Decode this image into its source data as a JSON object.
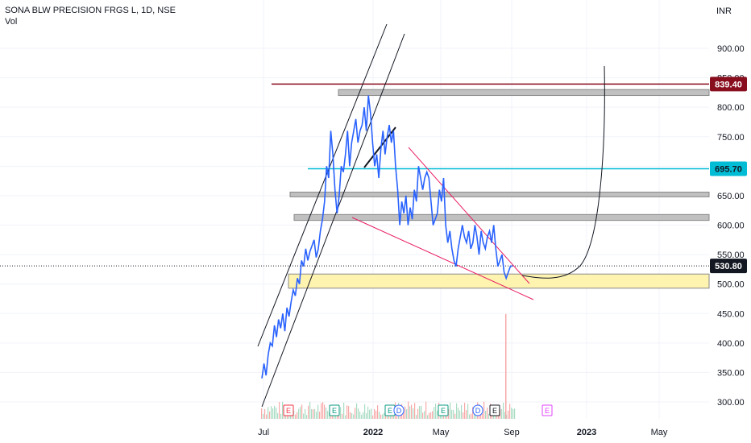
{
  "header": {
    "symbol_line": "SONA BLW PRECISION FRGS L, 1D, NSE",
    "volume_label": "Vol",
    "currency": "INR"
  },
  "chart_data": {
    "type": "line",
    "title": "SONA BLW PRECISION FRGS L, 1D, NSE",
    "ylim": [
      285,
      960
    ],
    "y_ticks": [
      "300.00",
      "350.00",
      "400.00",
      "450.00",
      "500.00",
      "550.00",
      "600.00",
      "650.00",
      "700.00",
      "750.00",
      "800.00",
      "850.00",
      "900.00"
    ],
    "x_ticks": [
      {
        "label": "Jul",
        "bold": false
      },
      {
        "label": "2022",
        "bold": true
      },
      {
        "label": "May",
        "bold": false
      },
      {
        "label": "Sep",
        "bold": false
      },
      {
        "label": "2023",
        "bold": true
      },
      {
        "label": "May",
        "bold": false
      }
    ],
    "last_price": "530.80",
    "series": [
      {
        "values": [
          340,
          365,
          345,
          380,
          400,
          395,
          430,
          410,
          440,
          425,
          450,
          420,
          460,
          445,
          470,
          490,
          480,
          510,
          500,
          540,
          530,
          560,
          540,
          555,
          565,
          575,
          545,
          560,
          590,
          610,
          640,
          700,
          680,
          760,
          720,
          660,
          620,
          650,
          700,
          690,
          720,
          760,
          700,
          740,
          760,
          780,
          740,
          760,
          770,
          800,
          760,
          820,
          790,
          740,
          700,
          720,
          680,
          730,
          760,
          720,
          750,
          770,
          740,
          760,
          700,
          660,
          600,
          640,
          620,
          650,
          600,
          630,
          610,
          660,
          640,
          700,
          680,
          660,
          680,
          690,
          680,
          640,
          600,
          610,
          620,
          660,
          640,
          680,
          600,
          570,
          590,
          560,
          540,
          530,
          560,
          580,
          600,
          580,
          570,
          590,
          560,
          570,
          600,
          580,
          550,
          590,
          570,
          560,
          580,
          590,
          570,
          600,
          560,
          530,
          540,
          550,
          520,
          510,
          520,
          530,
          531
        ]
      }
    ],
    "horizontal_levels": [
      {
        "label": "839.40",
        "value": 839.4,
        "color": "#880e1e"
      },
      {
        "label": "695.70",
        "value": 695.7,
        "color": "#00bcd4"
      }
    ],
    "zones": [
      {
        "from": 820,
        "to": 830,
        "color": "#c0c0c0"
      },
      {
        "from": 648,
        "to": 656,
        "color": "#c0c0c0"
      },
      {
        "from": 608,
        "to": 618,
        "color": "#c0c0c0"
      },
      {
        "from": 493,
        "to": 517,
        "color": "#fff3b0"
      }
    ],
    "events": [
      "E",
      "E",
      "E",
      "D",
      "E",
      "D",
      "E",
      "E"
    ],
    "colors": {
      "price_line": "#2962ff",
      "level_red": "#880e1e",
      "level_cyan": "#00bcd4",
      "channel": "#131722",
      "wedge": "#e91e63",
      "current_price_badge": "#131722"
    }
  }
}
